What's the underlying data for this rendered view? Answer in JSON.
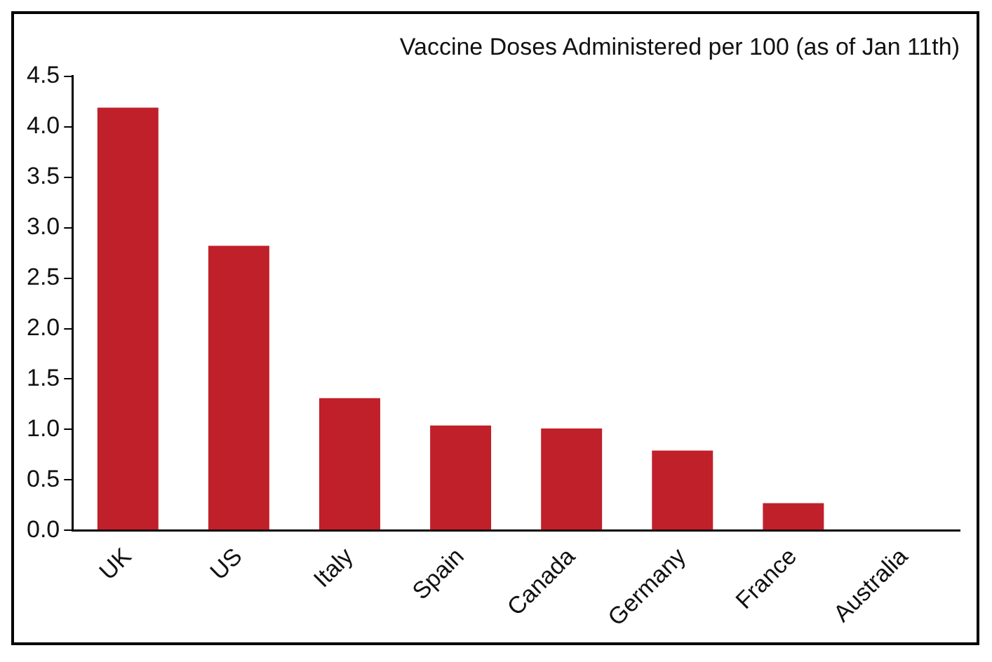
{
  "chart_data": {
    "type": "bar",
    "title": "Vaccine Doses Administered per 100 (as of Jan 11th)",
    "categories": [
      "UK",
      "US",
      "Italy",
      "Spain",
      "Canada",
      "Germany",
      "France",
      "Australia"
    ],
    "values": [
      4.19,
      2.82,
      1.31,
      1.04,
      1.01,
      0.79,
      0.27,
      0
    ],
    "color": "#c0202a",
    "ylim": [
      0,
      4.5
    ],
    "yticks": [
      {
        "value": 0,
        "label": "0.0"
      },
      0.5,
      {
        "value": 1,
        "label": "1.0"
      },
      1.5,
      {
        "value": 2,
        "label": "2.0"
      },
      2.5,
      {
        "value": 3,
        "label": "3.0"
      },
      3.5,
      {
        "value": 4,
        "label": "4.0"
      },
      4.5
    ],
    "grid": false,
    "legend": false
  }
}
